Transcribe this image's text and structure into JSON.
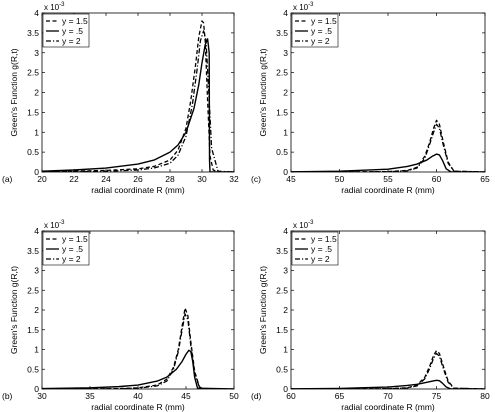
{
  "chart_data": [
    {
      "type": "line",
      "panel_tag": "(a)",
      "xlabel": "radial coordinate R (mm)",
      "ylabel": "Green's Function g(R,t)",
      "xlim": [
        20,
        32
      ],
      "ylim": [
        0,
        4
      ],
      "xticks": [
        20,
        22,
        24,
        26,
        28,
        30,
        32
      ],
      "yticks": [
        0,
        0.5,
        1,
        1.5,
        2,
        2.5,
        3,
        3.5,
        4
      ],
      "y_exponent": "-3",
      "legend_position": "top-left",
      "series": [
        {
          "name": "y = 1.5",
          "style": "dashed",
          "x": [
            20,
            22,
            24,
            26,
            27,
            28,
            28.5,
            29,
            29.3,
            29.6,
            29.8,
            30.0,
            30.1,
            30.2,
            30.35,
            30.5,
            30.7,
            31,
            32
          ],
          "y": [
            0.01,
            0.02,
            0.04,
            0.08,
            0.14,
            0.3,
            0.55,
            1.1,
            1.8,
            2.7,
            3.4,
            3.8,
            3.75,
            3.3,
            1.8,
            0.4,
            0.05,
            0,
            0
          ]
        },
        {
          "name": "y = .5",
          "style": "solid",
          "x": [
            20,
            22,
            24,
            26,
            27,
            28,
            28.5,
            29,
            29.5,
            29.8,
            30.0,
            30.2,
            30.35,
            30.45,
            30.47,
            30.5,
            32
          ],
          "y": [
            0.02,
            0.05,
            0.1,
            0.2,
            0.3,
            0.5,
            0.68,
            1.0,
            1.6,
            2.2,
            2.75,
            3.2,
            3.35,
            3.0,
            0.3,
            0,
            0
          ]
        },
        {
          "name": "y = 2",
          "style": "dashdot",
          "x": [
            20,
            22,
            24,
            26,
            27,
            28,
            28.5,
            29,
            29.4,
            29.7,
            29.9,
            30.1,
            30.25,
            30.4,
            30.6,
            31,
            32
          ],
          "y": [
            0.005,
            0.01,
            0.02,
            0.05,
            0.1,
            0.22,
            0.42,
            0.9,
            1.7,
            2.6,
            3.3,
            3.55,
            3.3,
            2.2,
            0.6,
            0.02,
            0
          ]
        }
      ]
    },
    {
      "type": "line",
      "panel_tag": "(c)",
      "xlabel": "radial coordinate R (mm)",
      "ylabel": "Green's Function g(R,t)",
      "xlim": [
        45,
        65
      ],
      "ylim": [
        0,
        4
      ],
      "xticks": [
        45,
        50,
        55,
        60,
        65
      ],
      "yticks": [
        0,
        0.5,
        1,
        1.5,
        2,
        2.5,
        3,
        3.5,
        4
      ],
      "y_exponent": "-3",
      "legend_position": "top-left",
      "series": [
        {
          "name": "y = 1.5",
          "style": "dashed",
          "x": [
            45,
            50,
            55,
            57,
            58,
            58.8,
            59.3,
            59.7,
            60.0,
            60.3,
            60.7,
            61.2,
            61.8,
            65
          ],
          "y": [
            0,
            0.002,
            0.01,
            0.04,
            0.12,
            0.4,
            0.75,
            1.1,
            1.3,
            1.2,
            0.75,
            0.25,
            0.02,
            0
          ]
        },
        {
          "name": "y = .5",
          "style": "solid",
          "x": [
            45,
            50,
            55,
            57,
            58,
            59,
            59.6,
            60.0,
            60.3,
            60.6,
            61.0,
            61.5,
            65
          ],
          "y": [
            0.005,
            0.02,
            0.07,
            0.14,
            0.2,
            0.3,
            0.4,
            0.45,
            0.43,
            0.3,
            0.08,
            0,
            0
          ]
        },
        {
          "name": "y = 2",
          "style": "dashdot",
          "x": [
            45,
            50,
            55,
            57,
            58,
            58.8,
            59.3,
            59.7,
            60.0,
            60.3,
            60.7,
            61.2,
            61.8,
            65
          ],
          "y": [
            0,
            0.001,
            0.006,
            0.03,
            0.1,
            0.35,
            0.7,
            1.0,
            1.2,
            1.1,
            0.68,
            0.22,
            0.02,
            0
          ]
        }
      ]
    },
    {
      "type": "line",
      "panel_tag": "(b)",
      "xlabel": "radial coordinate R (mm)",
      "ylabel": "Green's Function g(R,t)",
      "xlim": [
        30,
        50
      ],
      "ylim": [
        0,
        4
      ],
      "xticks": [
        30,
        35,
        40,
        45,
        50
      ],
      "yticks": [
        0,
        0.5,
        1,
        1.5,
        2,
        2.5,
        3,
        3.5,
        4
      ],
      "y_exponent": "-3",
      "legend_position": "top-left",
      "series": [
        {
          "name": "y = 1.5",
          "style": "dashed",
          "x": [
            30,
            35,
            38,
            40,
            42,
            43,
            43.7,
            44.2,
            44.6,
            44.9,
            45.2,
            45.5,
            45.9,
            46.4,
            47,
            50
          ],
          "y": [
            0,
            0.003,
            0.01,
            0.03,
            0.1,
            0.25,
            0.55,
            1.0,
            1.6,
            2.05,
            1.85,
            1.2,
            0.45,
            0.05,
            0,
            0
          ]
        },
        {
          "name": "y = .5",
          "style": "solid",
          "x": [
            30,
            35,
            38,
            40,
            42,
            43,
            44,
            44.6,
            45.0,
            45.3,
            45.5,
            45.7,
            45.9,
            46.2,
            50
          ],
          "y": [
            0.01,
            0.03,
            0.06,
            0.1,
            0.2,
            0.3,
            0.5,
            0.7,
            0.88,
            0.98,
            0.95,
            0.7,
            0.3,
            0.02,
            0
          ]
        },
        {
          "name": "y = 2",
          "style": "dashdot",
          "x": [
            30,
            35,
            38,
            40,
            42,
            43,
            43.7,
            44.2,
            44.6,
            44.9,
            45.2,
            45.5,
            45.9,
            46.4,
            47,
            50
          ],
          "y": [
            0,
            0.002,
            0.006,
            0.02,
            0.08,
            0.2,
            0.5,
            0.95,
            1.5,
            1.9,
            1.75,
            1.1,
            0.4,
            0.04,
            0,
            0
          ]
        }
      ]
    },
    {
      "type": "line",
      "panel_tag": "(d)",
      "xlabel": "radial coordinate R (mm)",
      "ylabel": "Green's Function g(R,t)",
      "xlim": [
        60,
        80
      ],
      "ylim": [
        0,
        4
      ],
      "xticks": [
        60,
        65,
        70,
        75,
        80
      ],
      "yticks": [
        0,
        0.5,
        1,
        1.5,
        2,
        2.5,
        3,
        3.5,
        4
      ],
      "y_exponent": "-3",
      "legend_position": "top-left",
      "series": [
        {
          "name": "y = 1.5",
          "style": "dashed",
          "x": [
            60,
            65,
            70,
            72,
            73,
            73.8,
            74.3,
            74.7,
            75.0,
            75.3,
            75.7,
            76.2,
            76.8,
            80
          ],
          "y": [
            0,
            0.001,
            0.008,
            0.03,
            0.1,
            0.3,
            0.58,
            0.85,
            0.97,
            0.9,
            0.58,
            0.2,
            0.02,
            0
          ]
        },
        {
          "name": "y = .5",
          "style": "solid",
          "x": [
            60,
            65,
            70,
            72,
            73,
            74,
            74.6,
            75.0,
            75.3,
            75.6,
            76.0,
            76.5,
            80
          ],
          "y": [
            0.003,
            0.015,
            0.05,
            0.09,
            0.12,
            0.17,
            0.2,
            0.22,
            0.21,
            0.15,
            0.05,
            0,
            0
          ]
        },
        {
          "name": "y = 2",
          "style": "dashdot",
          "x": [
            60,
            65,
            70,
            72,
            73,
            73.8,
            74.3,
            74.7,
            75.0,
            75.3,
            75.7,
            76.2,
            76.8,
            80
          ],
          "y": [
            0,
            0.0005,
            0.005,
            0.025,
            0.08,
            0.26,
            0.52,
            0.78,
            0.9,
            0.83,
            0.52,
            0.17,
            0.02,
            0
          ]
        }
      ]
    }
  ]
}
